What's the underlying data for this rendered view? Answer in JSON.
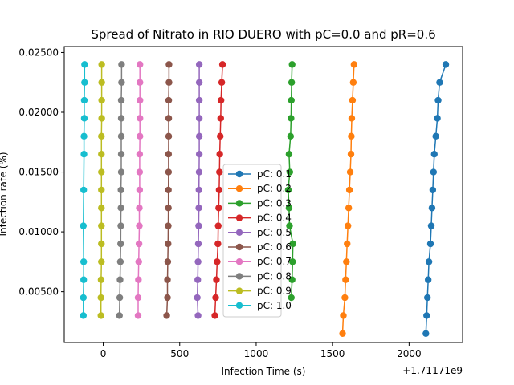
{
  "chart_data": {
    "type": "line",
    "title": "Spread of Nitrato in RIO DUERO with pC=0.0 and pR=0.6",
    "xlabel": "Infection Time (s)",
    "ylabel": "Infection rate (%)",
    "x_offset_label": "+1.71171e9",
    "xlim": [
      -255,
      2350
    ],
    "ylim": [
      0.00075,
      0.0255
    ],
    "x_ticks": [
      0,
      500,
      1000,
      1500,
      2000
    ],
    "x_tick_labels": [
      "0",
      "500",
      "1000",
      "1500",
      "2000"
    ],
    "y_ticks": [
      0.005,
      0.01,
      0.015,
      0.02,
      0.025
    ],
    "y_tick_labels": [
      "0.00500",
      "0.01000",
      "0.01500",
      "0.02000",
      "0.02500"
    ],
    "grid": false,
    "legend_position": "lower-center",
    "series": [
      {
        "name": "pC: 0.1",
        "color": "#1f77b4",
        "points": [
          [
            2110,
            0.0015
          ],
          [
            2115,
            0.003
          ],
          [
            2120,
            0.0045
          ],
          [
            2125,
            0.006
          ],
          [
            2130,
            0.0075
          ],
          [
            2140,
            0.009
          ],
          [
            2145,
            0.0105
          ],
          [
            2150,
            0.012
          ],
          [
            2155,
            0.0135
          ],
          [
            2160,
            0.015
          ],
          [
            2165,
            0.0165
          ],
          [
            2175,
            0.018
          ],
          [
            2185,
            0.0195
          ],
          [
            2190,
            0.021
          ],
          [
            2200,
            0.0225
          ],
          [
            2240,
            0.024
          ]
        ]
      },
      {
        "name": "pC: 0.2",
        "color": "#ff7f0e",
        "points": [
          [
            1565,
            0.0015
          ],
          [
            1570,
            0.003
          ],
          [
            1580,
            0.0045
          ],
          [
            1585,
            0.006
          ],
          [
            1590,
            0.0075
          ],
          [
            1595,
            0.009
          ],
          [
            1600,
            0.0105
          ],
          [
            1605,
            0.012
          ],
          [
            1610,
            0.0135
          ],
          [
            1615,
            0.015
          ],
          [
            1620,
            0.0165
          ],
          [
            1622,
            0.018
          ],
          [
            1625,
            0.0195
          ],
          [
            1630,
            0.021
          ],
          [
            1635,
            0.0225
          ],
          [
            1640,
            0.024
          ]
        ]
      },
      {
        "name": "pC: 0.3",
        "color": "#2ca02c",
        "points": [
          [
            1230,
            0.0045
          ],
          [
            1235,
            0.006
          ],
          [
            1238,
            0.0075
          ],
          [
            1240,
            0.009
          ],
          [
            1218,
            0.0105
          ],
          [
            1215,
            0.012
          ],
          [
            1210,
            0.0135
          ],
          [
            1220,
            0.015
          ],
          [
            1215,
            0.0165
          ],
          [
            1225,
            0.018
          ],
          [
            1228,
            0.0195
          ],
          [
            1230,
            0.021
          ],
          [
            1232,
            0.0225
          ],
          [
            1235,
            0.024
          ]
        ]
      },
      {
        "name": "pC: 0.4",
        "color": "#d62728",
        "points": [
          [
            730,
            0.003
          ],
          [
            735,
            0.0045
          ],
          [
            740,
            0.006
          ],
          [
            745,
            0.0075
          ],
          [
            750,
            0.009
          ],
          [
            752,
            0.0105
          ],
          [
            755,
            0.012
          ],
          [
            758,
            0.0135
          ],
          [
            760,
            0.015
          ],
          [
            762,
            0.0165
          ],
          [
            765,
            0.018
          ],
          [
            768,
            0.0195
          ],
          [
            770,
            0.021
          ],
          [
            775,
            0.0225
          ],
          [
            780,
            0.024
          ]
        ]
      },
      {
        "name": "pC: 0.5",
        "color": "#9467bd",
        "points": [
          [
            620,
            0.003
          ],
          [
            615,
            0.0045
          ],
          [
            618,
            0.006
          ],
          [
            620,
            0.0075
          ],
          [
            622,
            0.009
          ],
          [
            624,
            0.0105
          ],
          [
            625,
            0.012
          ],
          [
            626,
            0.0135
          ],
          [
            627,
            0.015
          ],
          [
            628,
            0.0165
          ],
          [
            628,
            0.018
          ],
          [
            628,
            0.0195
          ],
          [
            628,
            0.021
          ],
          [
            628,
            0.0225
          ],
          [
            628,
            0.024
          ]
        ]
      },
      {
        "name": "pC: 0.6",
        "color": "#8c564b",
        "points": [
          [
            415,
            0.003
          ],
          [
            420,
            0.0045
          ],
          [
            420,
            0.006
          ],
          [
            422,
            0.0075
          ],
          [
            424,
            0.009
          ],
          [
            425,
            0.0105
          ],
          [
            426,
            0.012
          ],
          [
            426,
            0.0135
          ],
          [
            427,
            0.015
          ],
          [
            427,
            0.0165
          ],
          [
            428,
            0.018
          ],
          [
            428,
            0.0195
          ],
          [
            428,
            0.021
          ],
          [
            430,
            0.0225
          ],
          [
            430,
            0.024
          ]
        ]
      },
      {
        "name": "pC: 0.7",
        "color": "#e377c2",
        "points": [
          [
            228,
            0.003
          ],
          [
            228,
            0.0045
          ],
          [
            230,
            0.006
          ],
          [
            232,
            0.0075
          ],
          [
            234,
            0.009
          ],
          [
            236,
            0.0105
          ],
          [
            236,
            0.012
          ],
          [
            238,
            0.0135
          ],
          [
            238,
            0.015
          ],
          [
            238,
            0.0165
          ],
          [
            240,
            0.018
          ],
          [
            240,
            0.0195
          ],
          [
            240,
            0.021
          ],
          [
            240,
            0.0225
          ],
          [
            240,
            0.024
          ]
        ]
      },
      {
        "name": "pC: 0.8",
        "color": "#7f7f7f",
        "points": [
          [
            106,
            0.003
          ],
          [
            108,
            0.0045
          ],
          [
            110,
            0.006
          ],
          [
            112,
            0.0075
          ],
          [
            114,
            0.009
          ],
          [
            115,
            0.0105
          ],
          [
            116,
            0.012
          ],
          [
            116,
            0.0135
          ],
          [
            118,
            0.015
          ],
          [
            118,
            0.0165
          ],
          [
            118,
            0.018
          ],
          [
            118,
            0.0195
          ],
          [
            118,
            0.021
          ],
          [
            120,
            0.0225
          ],
          [
            120,
            0.024
          ]
        ]
      },
      {
        "name": "pC: 0.9",
        "color": "#bcbd22",
        "points": [
          [
            -15,
            0.003
          ],
          [
            -15,
            0.0045
          ],
          [
            -14,
            0.006
          ],
          [
            -12,
            0.0075
          ],
          [
            -12,
            0.009
          ],
          [
            -12,
            0.0105
          ],
          [
            -12,
            0.012
          ],
          [
            -12,
            0.0135
          ],
          [
            -12,
            0.015
          ],
          [
            -12,
            0.0165
          ],
          [
            -12,
            0.018
          ],
          [
            -10,
            0.0195
          ],
          [
            -10,
            0.021
          ],
          [
            -10,
            0.0225
          ],
          [
            -10,
            0.024
          ]
        ]
      },
      {
        "name": "pC: 1.0",
        "color": "#17becf",
        "points": [
          [
            -130,
            0.003
          ],
          [
            -130,
            0.0045
          ],
          [
            -128,
            0.006
          ],
          [
            -128,
            0.0075
          ],
          [
            -130,
            0.0105
          ],
          [
            -128,
            0.0135
          ],
          [
            -126,
            0.0165
          ],
          [
            -126,
            0.018
          ],
          [
            -124,
            0.0195
          ],
          [
            -124,
            0.021
          ],
          [
            -122,
            0.0225
          ],
          [
            -122,
            0.024
          ]
        ]
      }
    ]
  }
}
